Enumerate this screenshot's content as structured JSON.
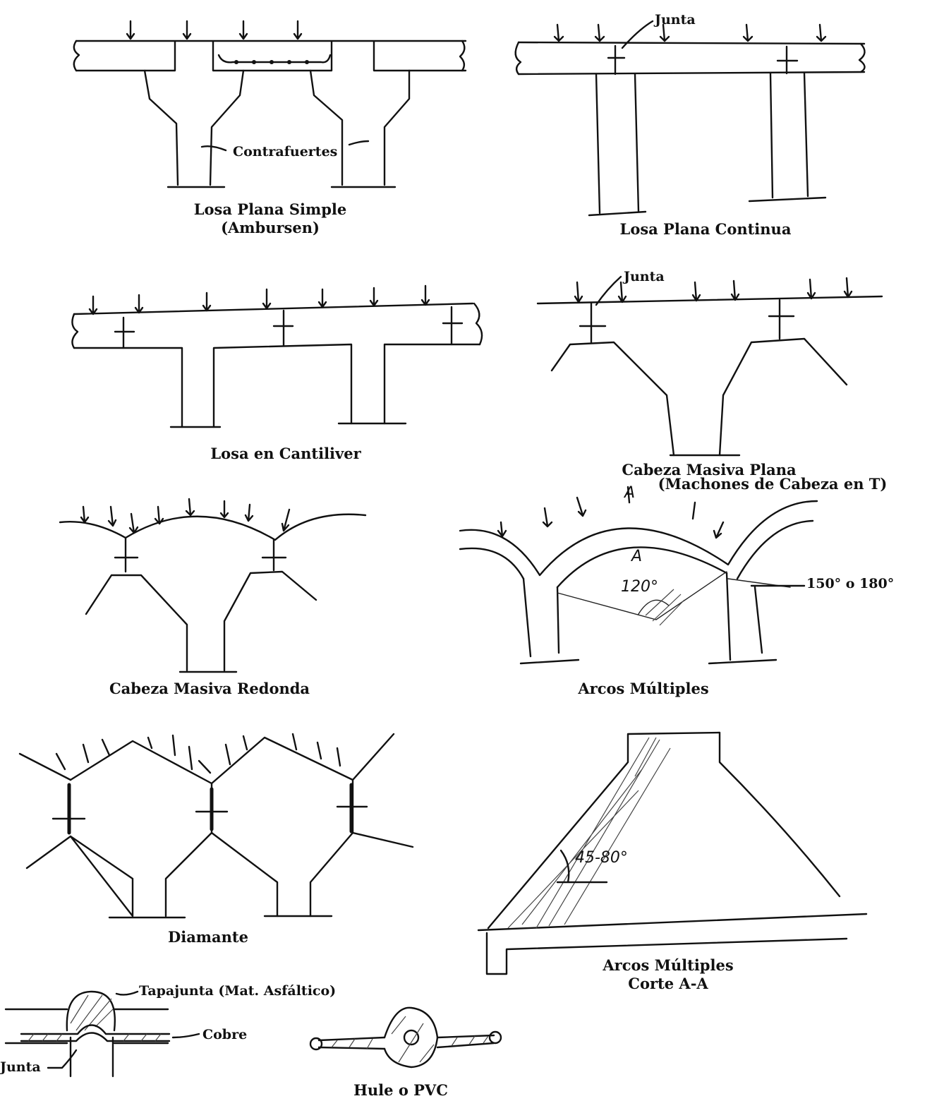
{
  "figures": {
    "losa_plana_simple": {
      "caption_line1": "Losa Plana Simple",
      "caption_line2": "(Ambursen)",
      "label_contrafuertes": "Contrafuertes"
    },
    "losa_plana_continua": {
      "caption": "Losa Plana Continua",
      "label_junta": "Junta"
    },
    "losa_cantiliver": {
      "caption": "Losa en Cantiliver"
    },
    "cabeza_masiva_plana": {
      "caption_line1": "Cabeza Masiva Plana",
      "caption_line2": "(Machones de Cabeza en T)",
      "label_junta": "Junta"
    },
    "cabeza_masiva_redonda": {
      "caption": "Cabeza Masiva Redonda"
    },
    "arcos_multiples": {
      "caption": "Arcos Múltiples",
      "label_angle_outer": "150° o 180°",
      "label_angle_inner": "120°",
      "label_section_mark": "A",
      "label_section_mark_top": "A"
    },
    "diamante": {
      "caption": "Diamante"
    },
    "arcos_multiples_corte": {
      "caption_line1": "Arcos Múltiples",
      "caption_line2": "Corte A-A",
      "label_angle": "45-80°"
    },
    "junta_detalle": {
      "label_tapajunta": "Tapajunta (Mat. Asfáltico)",
      "label_cobre": "Cobre",
      "label_junta": "Junta"
    },
    "hule_pvc": {
      "caption": "Hule o PVC"
    }
  }
}
